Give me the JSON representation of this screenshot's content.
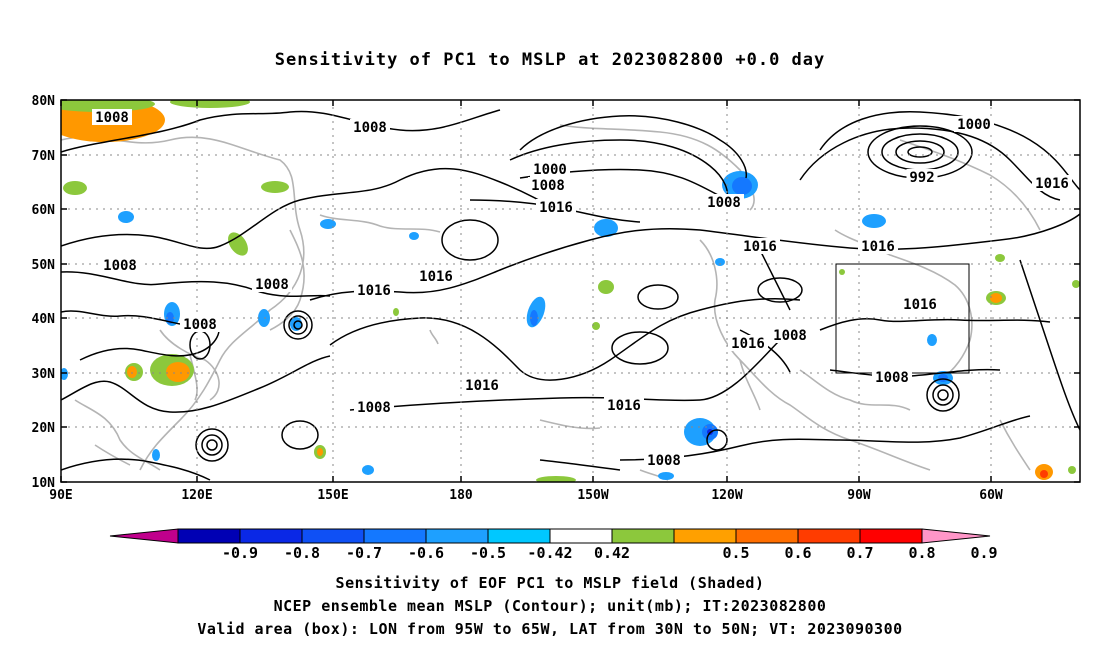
{
  "title": "Sensitivity of PC1 to MSLP at 2023082800 +0.0 day",
  "lat_labels": [
    "80N",
    "70N",
    "60N",
    "50N",
    "40N",
    "30N",
    "20N",
    "10N"
  ],
  "lon_labels": [
    "90E",
    "120E",
    "150E",
    "180",
    "150W",
    "120W",
    "90W",
    "60W"
  ],
  "contour_labels": [
    "1008",
    "1008",
    "1000",
    "1008",
    "1016",
    "1008",
    "1000",
    "992",
    "1016",
    "1016",
    "1016",
    "1008",
    "1008",
    "1016",
    "1016",
    "1008",
    "1016",
    "1008",
    "1016",
    "1016",
    "1008",
    "1016",
    "1008",
    "1008"
  ],
  "colorbar": {
    "labels": [
      "-0.9",
      "-0.8",
      "-0.7",
      "-0.6",
      "-0.5",
      "-0.42",
      "0.42",
      "0.5",
      "0.6",
      "0.7",
      "0.8",
      "0.9"
    ],
    "colors": [
      "#c0008c",
      "#0000b4",
      "#0a28e6",
      "#0f50f5",
      "#1478ff",
      "#1ea0ff",
      "#00c8ff",
      "#ffffff",
      "#8cc83c",
      "#ffa000",
      "#ff6e00",
      "#ff3c00",
      "#ff0000",
      "#ff96c8"
    ]
  },
  "captions": {
    "line1": "Sensitivity of EOF PC1 to MSLP field (Shaded)",
    "line2": "NCEP ensemble mean MSLP (Contour); unit(mb); IT:2023082800",
    "line3": "Valid area (box): LON from 95W to 65W, LAT from 30N to 50N; VT: 2023090300"
  }
}
